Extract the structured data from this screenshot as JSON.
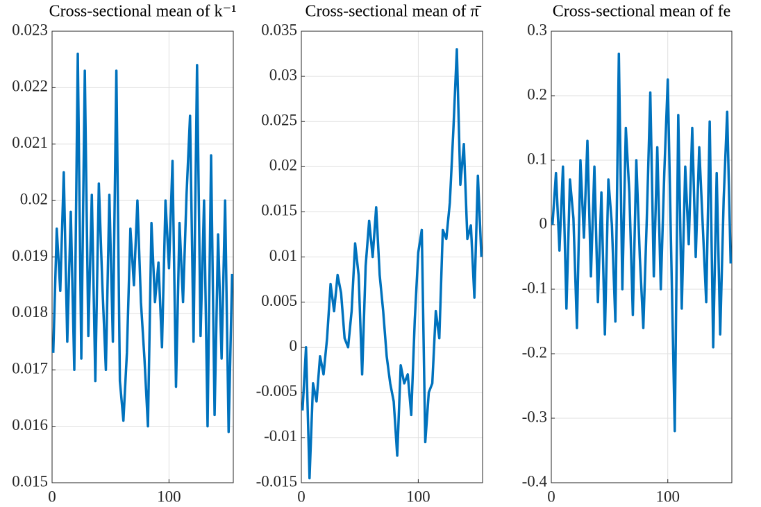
{
  "chart_data": [
    {
      "type": "line",
      "title": "Cross-sectional mean of k⁻¹",
      "color": "#0072bd",
      "x": [
        1,
        4,
        7,
        10,
        13,
        16,
        19,
        22,
        25,
        28,
        31,
        34,
        37,
        40,
        43,
        46,
        49,
        52,
        55,
        58,
        61,
        64,
        67,
        70,
        73,
        76,
        79,
        82,
        85,
        88,
        91,
        94,
        97,
        100,
        103,
        106,
        109,
        112,
        115,
        118,
        121,
        124,
        127,
        130,
        133,
        136,
        139,
        142,
        145,
        148,
        151,
        154
      ],
      "values": [
        0.0173,
        0.0195,
        0.0184,
        0.0205,
        0.0175,
        0.0198,
        0.017,
        0.0226,
        0.0172,
        0.0223,
        0.0176,
        0.0201,
        0.0168,
        0.0203,
        0.0185,
        0.017,
        0.0201,
        0.0175,
        0.0223,
        0.0168,
        0.0161,
        0.0173,
        0.0195,
        0.0185,
        0.02,
        0.0182,
        0.0172,
        0.016,
        0.0196,
        0.0182,
        0.0189,
        0.0174,
        0.02,
        0.0188,
        0.0207,
        0.0167,
        0.0196,
        0.0182,
        0.0201,
        0.0215,
        0.0175,
        0.0224,
        0.0176,
        0.02,
        0.016,
        0.0208,
        0.0162,
        0.0194,
        0.0172,
        0.02,
        0.0159,
        0.0187
      ],
      "xlim": [
        0,
        155
      ],
      "xticks": [
        0,
        100
      ],
      "ylim": [
        0.015,
        0.023
      ],
      "yticks": [
        0.015,
        0.016,
        0.017,
        0.018,
        0.019,
        0.02,
        0.021,
        0.022,
        0.023
      ],
      "grid": true
    },
    {
      "type": "line",
      "title": "Cross-sectional mean of π̄",
      "color": "#0072bd",
      "x": [
        1,
        4,
        7,
        10,
        13,
        16,
        19,
        22,
        25,
        28,
        31,
        34,
        37,
        40,
        43,
        46,
        49,
        52,
        55,
        58,
        61,
        64,
        67,
        70,
        73,
        76,
        79,
        82,
        85,
        88,
        91,
        94,
        97,
        100,
        103,
        106,
        109,
        112,
        115,
        118,
        121,
        124,
        127,
        130,
        133,
        136,
        139,
        142,
        145,
        148,
        151,
        154
      ],
      "values": [
        -0.007,
        0.0,
        -0.0145,
        -0.004,
        -0.006,
        -0.001,
        -0.003,
        0.001,
        0.007,
        0.004,
        0.008,
        0.006,
        0.001,
        0.0,
        0.004,
        0.0115,
        0.008,
        -0.003,
        0.009,
        0.014,
        0.01,
        0.0155,
        0.008,
        0.004,
        -0.001,
        -0.004,
        -0.006,
        -0.012,
        -0.002,
        -0.004,
        -0.003,
        -0.0075,
        0.003,
        0.0105,
        0.013,
        -0.0105,
        -0.005,
        -0.004,
        0.004,
        0.001,
        0.013,
        0.012,
        0.016,
        0.024,
        0.033,
        0.018,
        0.0225,
        0.012,
        0.0135,
        0.0055,
        0.019,
        0.01
      ],
      "xlim": [
        0,
        155
      ],
      "xticks": [
        0,
        100
      ],
      "ylim": [
        -0.015,
        0.035
      ],
      "yticks": [
        -0.015,
        -0.01,
        -0.005,
        0,
        0.005,
        0.01,
        0.015,
        0.02,
        0.025,
        0.03,
        0.035
      ],
      "grid": true
    },
    {
      "type": "line",
      "title": "Cross-sectional mean of fe",
      "color": "#0072bd",
      "x": [
        1,
        4,
        7,
        10,
        13,
        16,
        19,
        22,
        25,
        28,
        31,
        34,
        37,
        40,
        43,
        46,
        49,
        52,
        55,
        58,
        61,
        64,
        67,
        70,
        73,
        76,
        79,
        82,
        85,
        88,
        91,
        94,
        97,
        100,
        103,
        106,
        109,
        112,
        115,
        118,
        121,
        124,
        127,
        130,
        133,
        136,
        139,
        142,
        145,
        148,
        151,
        154
      ],
      "values": [
        0.0,
        0.08,
        -0.04,
        0.09,
        -0.13,
        0.07,
        0.01,
        -0.16,
        0.1,
        -0.02,
        0.13,
        -0.08,
        0.09,
        -0.12,
        0.05,
        -0.17,
        0.07,
        0.0,
        -0.15,
        0.265,
        -0.1,
        0.15,
        0.05,
        -0.14,
        0.1,
        -0.05,
        -0.16,
        0.01,
        0.205,
        -0.08,
        0.12,
        -0.1,
        0.08,
        0.225,
        -0.05,
        -0.32,
        0.17,
        -0.13,
        0.09,
        -0.03,
        0.15,
        -0.05,
        0.12,
        0.0,
        -0.12,
        0.16,
        -0.19,
        0.08,
        -0.17,
        0.04,
        0.175,
        -0.06
      ],
      "xlim": [
        0,
        155
      ],
      "xticks": [
        0,
        100
      ],
      "ylim": [
        -0.4,
        0.3
      ],
      "yticks": [
        -0.4,
        -0.3,
        -0.2,
        -0.1,
        0,
        0.1,
        0.2,
        0.3
      ],
      "grid": true
    }
  ]
}
